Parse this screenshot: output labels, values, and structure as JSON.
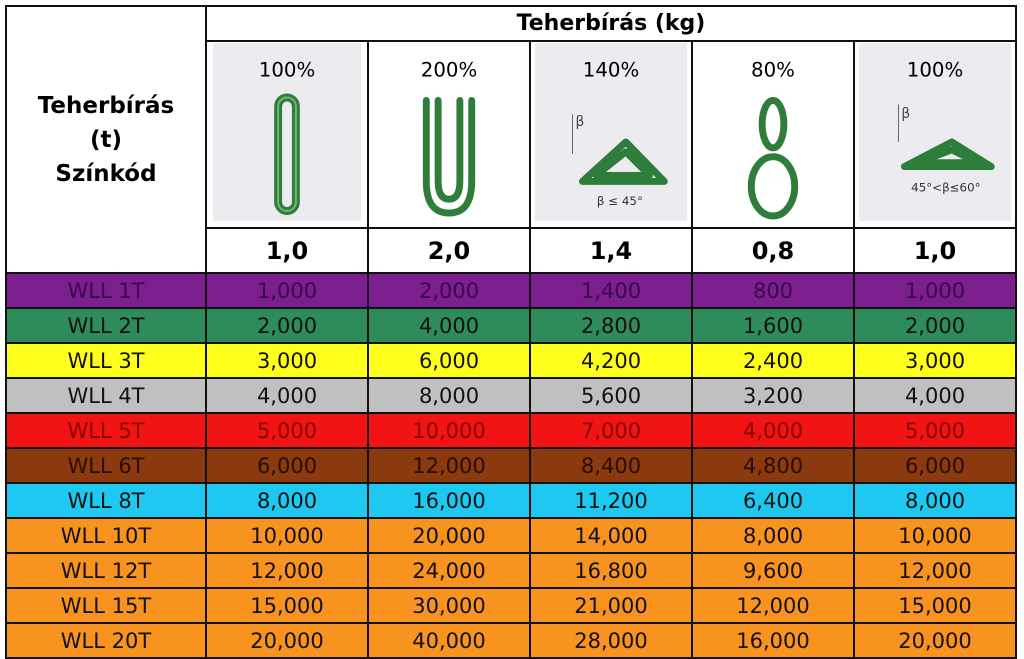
{
  "header": {
    "title": "Teherbírás (kg)",
    "left": [
      "Teherbírás",
      "(t)",
      "Színkód"
    ]
  },
  "columns": [
    {
      "percent": "100%",
      "factor": "1,0"
    },
    {
      "percent": "200%",
      "factor": "2,0"
    },
    {
      "percent": "140%",
      "factor": "1,4",
      "angle_symbol": "β",
      "angle_note": "β ≤ 45°"
    },
    {
      "percent": "80%",
      "factor": "0,8"
    },
    {
      "percent": "100%",
      "factor": "1,0",
      "angle_symbol": "β",
      "angle_note": "45°<β≤60°"
    }
  ],
  "rows": [
    {
      "label": "WLL 1T",
      "color": "#7b1f8e",
      "text_color": "#3a0a48",
      "values": [
        "1,000",
        "2,000",
        "1,400",
        "800",
        "1,000"
      ]
    },
    {
      "label": "WLL 2T",
      "color": "#2e8b5a",
      "text_color": "#111111",
      "values": [
        "2,000",
        "4,000",
        "2,800",
        "1,600",
        "2,000"
      ]
    },
    {
      "label": "WLL 3T",
      "color": "#ffff1e",
      "text_color": "#111111",
      "values": [
        "3,000",
        "6,000",
        "4,200",
        "2,400",
        "3,000"
      ]
    },
    {
      "label": "WLL 4T",
      "color": "#c0c0c0",
      "text_color": "#111111",
      "values": [
        "4,000",
        "8,000",
        "5,600",
        "3,200",
        "4,000"
      ]
    },
    {
      "label": "WLL 5T",
      "color": "#f01414",
      "text_color": "#8a0000",
      "values": [
        "5,000",
        "10,000",
        "7,000",
        "4,000",
        "5,000"
      ]
    },
    {
      "label": "WLL 6T",
      "color": "#8b3a10",
      "text_color": "#2a0e00",
      "values": [
        "6,000",
        "12,000",
        "8,400",
        "4,800",
        "6,000"
      ]
    },
    {
      "label": "WLL 8T",
      "color": "#1ec8f0",
      "text_color": "#111111",
      "values": [
        "8,000",
        "16,000",
        "11,200",
        "6,400",
        "8,000"
      ]
    },
    {
      "label": "WLL 10T",
      "color": "#f7931e",
      "text_color": "#111111",
      "values": [
        "10,000",
        "20,000",
        "14,000",
        "8,000",
        "10,000"
      ]
    },
    {
      "label": "WLL 12T",
      "color": "#f7931e",
      "text_color": "#111111",
      "values": [
        "12,000",
        "24,000",
        "16,800",
        "9,600",
        "12,000"
      ]
    },
    {
      "label": "WLL 15T",
      "color": "#f7931e",
      "text_color": "#111111",
      "values": [
        "15,000",
        "30,000",
        "21,000",
        "12,000",
        "15,000"
      ]
    },
    {
      "label": "WLL 20T",
      "color": "#f7931e",
      "text_color": "#111111",
      "values": [
        "20,000",
        "40,000",
        "28,000",
        "16,000",
        "20,000"
      ]
    }
  ]
}
